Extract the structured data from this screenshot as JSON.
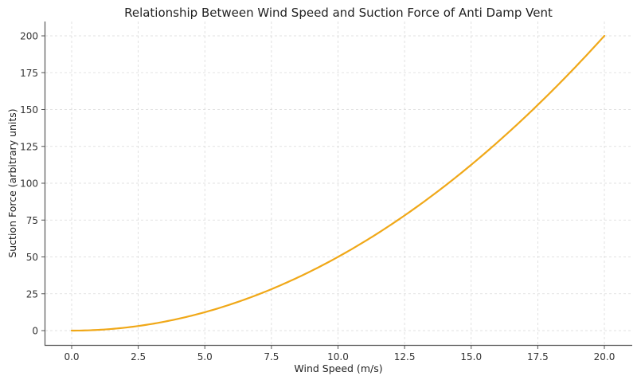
{
  "chart_data": {
    "type": "line",
    "title": "Relationship Between Wind Speed and Suction Force of Anti Damp Vent",
    "xlabel": "Wind Speed (m/s)",
    "ylabel": "Suction Force (arbitrary units)",
    "xlim": [
      -1,
      21
    ],
    "ylim": [
      -10,
      210
    ],
    "x_ticks": [
      "0.0",
      "2.5",
      "5.0",
      "7.5",
      "10.0",
      "12.5",
      "15.0",
      "17.5",
      "20.0"
    ],
    "y_ticks": [
      "0",
      "25",
      "50",
      "75",
      "100",
      "125",
      "150",
      "175",
      "200"
    ],
    "grid": true,
    "legend": null,
    "series": [
      {
        "name": "Suction Force",
        "color": "#f0a818",
        "formula": "0.5 * x^2",
        "x": [
          0,
          1,
          2,
          3,
          4,
          5,
          6,
          7,
          8,
          9,
          10,
          11,
          12,
          13,
          14,
          15,
          16,
          17,
          18,
          19,
          20
        ],
        "values": [
          0,
          0.5,
          2,
          4.5,
          8,
          12.5,
          18,
          24.5,
          32,
          40.5,
          50,
          60.5,
          72,
          84.5,
          98,
          112.5,
          128,
          144.5,
          162,
          180.5,
          200
        ]
      }
    ]
  }
}
